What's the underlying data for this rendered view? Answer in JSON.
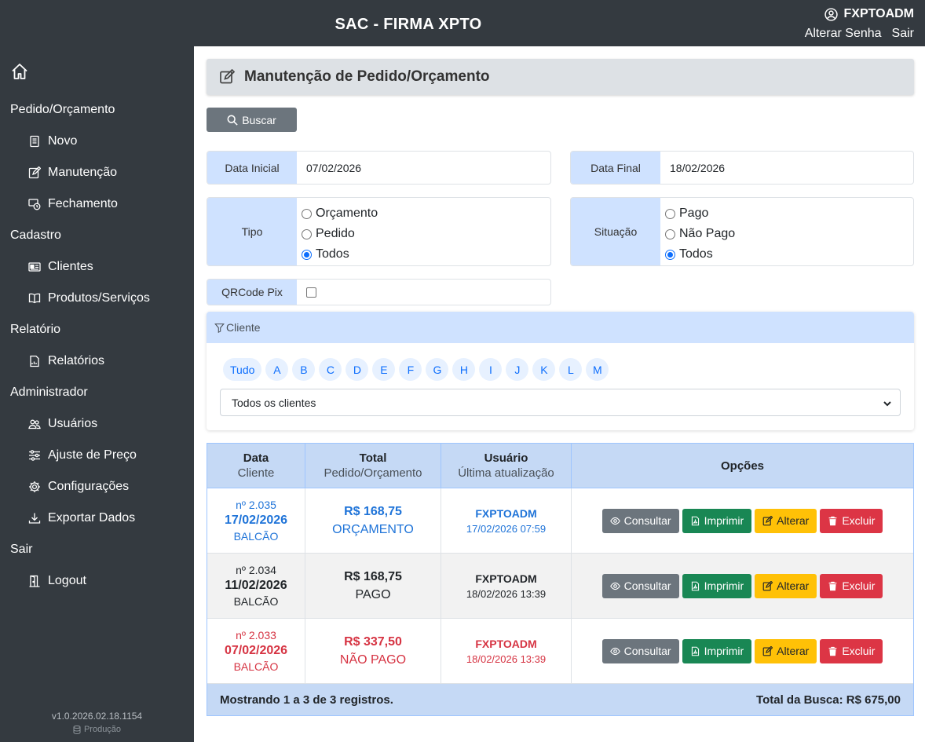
{
  "app": {
    "title": "SAC - FIRMA XPTO",
    "username": "FXPTOADM",
    "change_password": "Alterar Senha",
    "logout_link": "Sair"
  },
  "sidebar": {
    "sections": [
      {
        "label": "Pedido/Orçamento",
        "items": [
          {
            "label": "Novo",
            "icon": "document-icon"
          },
          {
            "label": "Manutenção",
            "icon": "edit-icon"
          },
          {
            "label": "Fechamento",
            "icon": "cash-icon"
          }
        ]
      },
      {
        "label": "Cadastro",
        "items": [
          {
            "label": "Clientes",
            "icon": "id-card-icon"
          },
          {
            "label": "Produtos/Serviços",
            "icon": "book-icon"
          }
        ]
      },
      {
        "label": "Relatório",
        "items": [
          {
            "label": "Relatórios",
            "icon": "report-icon"
          }
        ]
      },
      {
        "label": "Administrador",
        "items": [
          {
            "label": "Usuários",
            "icon": "users-icon"
          },
          {
            "label": "Ajuste de Preço",
            "icon": "sliders-icon"
          },
          {
            "label": "Configurações",
            "icon": "gear-icon"
          },
          {
            "label": "Exportar Dados",
            "icon": "download-icon"
          }
        ]
      },
      {
        "label": "Sair",
        "items": [
          {
            "label": "Logout",
            "icon": "door-icon"
          }
        ]
      }
    ],
    "version": "v1.0.2026.02.18.1154",
    "environment": "Produção"
  },
  "page": {
    "title": "Manutenção de Pedido/Orçamento",
    "search_button": "Buscar"
  },
  "filters": {
    "start_date_label": "Data Inicial",
    "start_date": "07/02/2026",
    "end_date_label": "Data Final",
    "end_date": "18/02/2026",
    "type_label": "Tipo",
    "type_options": [
      "Orçamento",
      "Pedido",
      "Todos"
    ],
    "type_selected": "Todos",
    "status_label": "Situação",
    "status_options": [
      "Pago",
      "Não Pago",
      "Todos"
    ],
    "status_selected": "Todos",
    "qrcode_label": "QRCode Pix",
    "qrcode_checked": false
  },
  "client_filter": {
    "title": "Cliente",
    "letters": [
      "Tudo",
      "A",
      "B",
      "C",
      "D",
      "E",
      "F",
      "G",
      "H",
      "I",
      "J",
      "K",
      "L",
      "M"
    ],
    "select_value": "Todos os clientes"
  },
  "table": {
    "headers": [
      {
        "a": "Data",
        "b": "Cliente"
      },
      {
        "a": "Total",
        "b": "Pedido/Orçamento"
      },
      {
        "a": "Usuário",
        "b": "Última atualização"
      },
      {
        "a": "Opções",
        "b": ""
      }
    ],
    "buttons": {
      "view": "Consultar",
      "print": "Imprimir",
      "edit": "Alterar",
      "delete": "Excluir"
    },
    "rows": [
      {
        "number": "nº 2.035",
        "date": "17/02/2026",
        "client": "BALCÃO",
        "total": "R$ 168,75",
        "status": "ORÇAMENTO",
        "user": "FXPTOADM",
        "updated": "17/02/2026 07:59",
        "color": "#1e73d8"
      },
      {
        "number": "nº 2.034",
        "date": "11/02/2026",
        "client": "BALCÃO",
        "total": "R$ 168,75",
        "status": "PAGO",
        "user": "FXPTOADM",
        "updated": "18/02/2026 13:39",
        "color": "#212529"
      },
      {
        "number": "nº 2.033",
        "date": "07/02/2026",
        "client": "BALCÃO",
        "total": "R$ 337,50",
        "status": "NÃO PAGO",
        "user": "FXPTOADM",
        "updated": "18/02/2026 13:39",
        "color": "#d63342"
      }
    ],
    "footer_left": "Mostrando 1 a 3 de 3 registros.",
    "footer_right": "Total da Busca: R$ 675,00"
  }
}
